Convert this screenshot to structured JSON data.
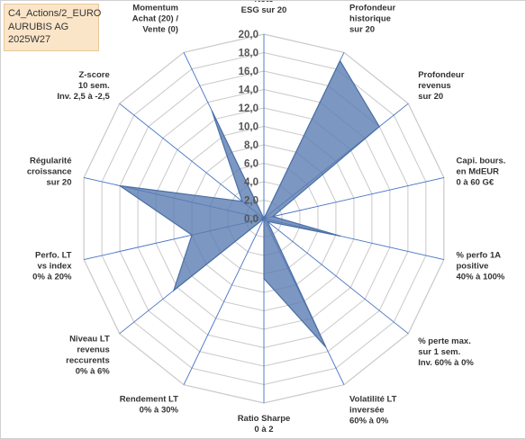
{
  "header": {
    "line1": "C4_Actions/2_EURO",
    "line2": "AURUBIS AG",
    "line3": "2025W27"
  },
  "chart_data": {
    "type": "radar",
    "title": "",
    "rmin": 0,
    "rmax": 20,
    "tick_step": 2,
    "tick_labels": [
      "0,0",
      "2,0",
      "4,0",
      "6,0",
      "8,0",
      "10,0",
      "12,0",
      "14,0",
      "16,0",
      "18,0",
      "20,0"
    ],
    "grid": true,
    "colors": {
      "fill": "#5b7db1",
      "stroke": "#4a6fa5",
      "grid": "#c9c9c9",
      "axis": "#4472c4"
    },
    "axes": [
      {
        "label": [
          "Note",
          "ESG sur 20"
        ],
        "value": 0
      },
      {
        "label": [
          "Profondeur",
          "historique",
          "sur 20"
        ],
        "value": 19
      },
      {
        "label": [
          "Profondeur",
          "revenus",
          "sur 20"
        ],
        "value": 16
      },
      {
        "label": [
          "Capi. bours.",
          "en MdEUR",
          "0 à 60 G€"
        ],
        "value": 1
      },
      {
        "label": [
          "% perfo 1A",
          "positive",
          "40% à 100%"
        ],
        "value": 8.5
      },
      {
        "label": [
          "% perte max.",
          "sur 1 sem.",
          "Inv. 60% à 0%"
        ],
        "value": 0.5
      },
      {
        "label": [
          "Volatilité LT",
          "inversée",
          "60% à 0%"
        ],
        "value": 15.5
      },
      {
        "label": [
          "Ratio Sharpe",
          "0 à 2"
        ],
        "value": 6.5
      },
      {
        "label": [
          "Rendement LT",
          "0% à 30%"
        ],
        "value": 0
      },
      {
        "label": [
          "Niveau LT",
          "revenus",
          "reccurents",
          "0% à 6%"
        ],
        "value": 12.5
      },
      {
        "label": [
          "Perfo. LT",
          "vs index",
          "0% à 20%"
        ],
        "value": 8
      },
      {
        "label": [
          "Régularité",
          "croissance",
          "sur 20"
        ],
        "value": 16
      },
      {
        "label": [
          "Z-score",
          "10 sem.",
          "Inv. 2,5 à -2,5"
        ],
        "value": 3
      },
      {
        "label": [
          "Momentum",
          "Achat (20) /",
          "Vente (0)"
        ],
        "value": 13
      }
    ]
  }
}
